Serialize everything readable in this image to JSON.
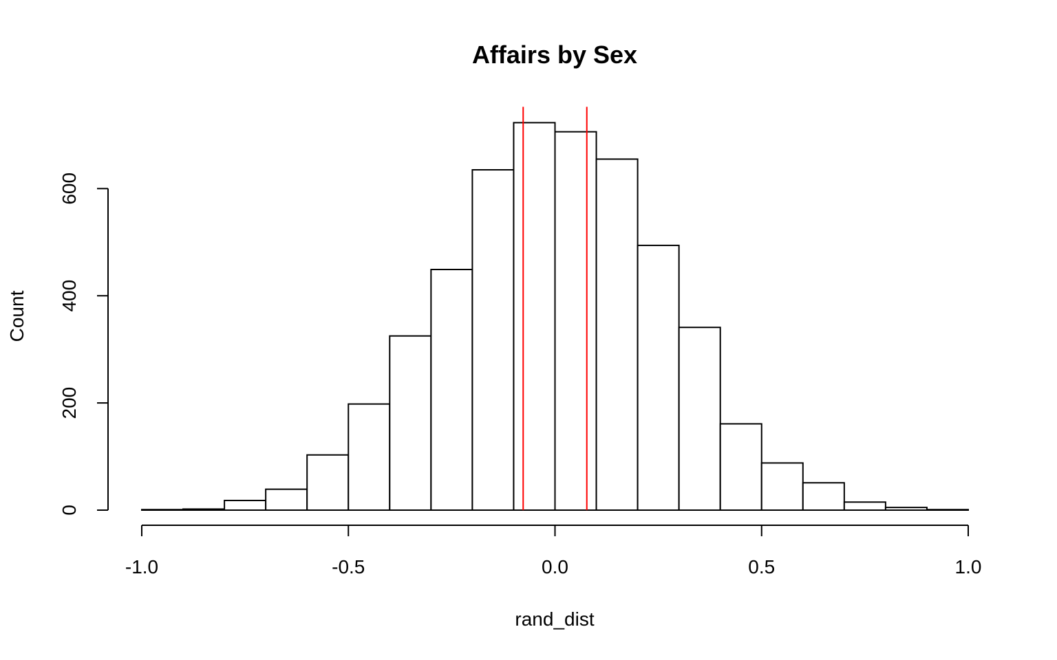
{
  "chart_data": {
    "type": "bar",
    "title": "Affairs by Sex",
    "xlabel": "rand_dist",
    "ylabel": "Count",
    "xlim": [
      -1.0,
      1.0
    ],
    "ylim": [
      0,
      750
    ],
    "bin_width": 0.1,
    "bins": [
      {
        "start": -1.0,
        "end": -0.9,
        "count": 1
      },
      {
        "start": -0.9,
        "end": -0.8,
        "count": 2
      },
      {
        "start": -0.8,
        "end": -0.7,
        "count": 18
      },
      {
        "start": -0.7,
        "end": -0.6,
        "count": 39
      },
      {
        "start": -0.6,
        "end": -0.5,
        "count": 103
      },
      {
        "start": -0.5,
        "end": -0.4,
        "count": 198
      },
      {
        "start": -0.4,
        "end": -0.3,
        "count": 325
      },
      {
        "start": -0.3,
        "end": -0.2,
        "count": 449
      },
      {
        "start": -0.2,
        "end": -0.1,
        "count": 635
      },
      {
        "start": -0.1,
        "end": 0.0,
        "count": 723
      },
      {
        "start": 0.0,
        "end": 0.1,
        "count": 706
      },
      {
        "start": 0.1,
        "end": 0.2,
        "count": 655
      },
      {
        "start": 0.2,
        "end": 0.3,
        "count": 494
      },
      {
        "start": 0.3,
        "end": 0.4,
        "count": 341
      },
      {
        "start": 0.4,
        "end": 0.5,
        "count": 161
      },
      {
        "start": 0.5,
        "end": 0.6,
        "count": 88
      },
      {
        "start": 0.6,
        "end": 0.7,
        "count": 51
      },
      {
        "start": 0.7,
        "end": 0.8,
        "count": 15
      },
      {
        "start": 0.8,
        "end": 0.9,
        "count": 5
      },
      {
        "start": 0.9,
        "end": 1.0,
        "count": 1
      }
    ],
    "x_ticks": [
      {
        "value": -1.0,
        "label": "-1.0"
      },
      {
        "value": -0.5,
        "label": "-0.5"
      },
      {
        "value": 0.0,
        "label": "0.0"
      },
      {
        "value": 0.5,
        "label": "0.5"
      },
      {
        "value": 1.0,
        "label": "1.0"
      }
    ],
    "y_ticks": [
      {
        "value": 0,
        "label": "0"
      },
      {
        "value": 200,
        "label": "200"
      },
      {
        "value": 400,
        "label": "400"
      },
      {
        "value": 600,
        "label": "600"
      }
    ],
    "vertical_lines": [
      {
        "x": -0.077,
        "color": "#ff0000"
      },
      {
        "x": 0.077,
        "color": "#ff0000"
      }
    ],
    "grid": false,
    "legend": "none"
  }
}
